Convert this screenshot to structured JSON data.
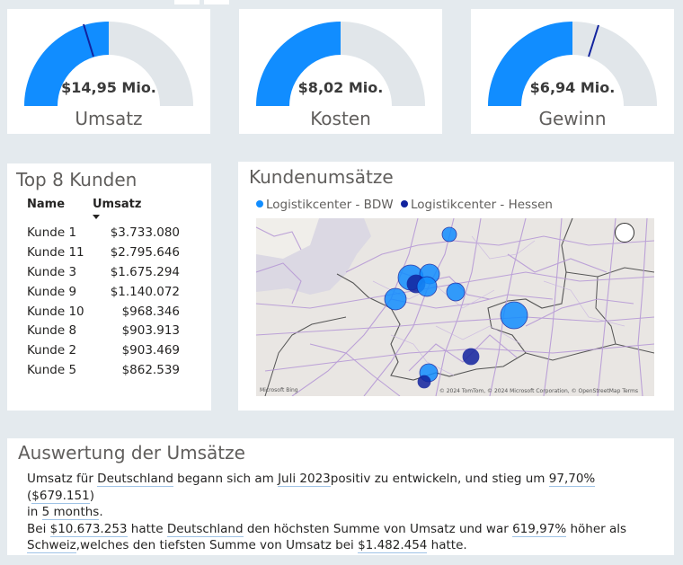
{
  "kpis": [
    {
      "value": "$14,95 Mio.",
      "label": "Umsatz",
      "fill": 0.5,
      "target": 0.41
    },
    {
      "value": "$8,02 Mio.",
      "label": "Kosten",
      "fill": 0.5,
      "target": null
    },
    {
      "value": "$6,94 Mio.",
      "label": "Gewinn",
      "fill": 0.5,
      "target": 0.61
    }
  ],
  "colors": {
    "accent": "#118dff",
    "track": "#e1e6ea",
    "target": "#12239e",
    "series_bdw": "#118dff",
    "series_hessen": "#12239e"
  },
  "customers": {
    "title": "Top 8 Kunden",
    "col_name": "Name",
    "col_value": "Umsatz",
    "rows": [
      {
        "name": "Kunde 1",
        "value": "$3.733.080"
      },
      {
        "name": "Kunde 11",
        "value": "$2.795.646"
      },
      {
        "name": "Kunde 3",
        "value": "$1.675.294"
      },
      {
        "name": "Kunde 9",
        "value": "$1.140.072"
      },
      {
        "name": "Kunde 10",
        "value": "$968.346"
      },
      {
        "name": "Kunde 8",
        "value": "$903.913"
      },
      {
        "name": "Kunde 2",
        "value": "$903.469"
      },
      {
        "name": "Kunde 5",
        "value": "$862.539"
      }
    ]
  },
  "map": {
    "title": "Kundenumsätze",
    "legend": [
      "Logistikcenter - BDW",
      "Logistikcenter - Hessen"
    ],
    "logo": "Microsoft Bing",
    "credit": "© 2024 TomTom, © 2024 Microsoft Corporation, © OpenStreetMap  Terms"
  },
  "narrative": {
    "title": "Auswertung der Umsätze",
    "p1": {
      "t1": "Umsatz für ",
      "h1": "Deutschland",
      "t2": " begann sich am ",
      "h2": "Juli 2023",
      "t3": "positiv zu entwickeln, und stieg um ",
      "h3": "97,70%",
      "t4": " (",
      "h4": "$679.151",
      "t5": ")",
      "t6": "in ",
      "h5": "5 months",
      "t7": "."
    },
    "p2": {
      "t1": "Bei ",
      "h1": "$10.673.253",
      "t2": " hatte ",
      "h2": "Deutschland",
      "t3": " den höchsten Summe von Umsatz und war ",
      "h3": "619,97%",
      "t4": " höher als ",
      "h4": "Schweiz",
      "t5": ",welches den tiefsten Summe von Umsatz bei ",
      "h5": "$1.482.454",
      "t6": " hatte."
    }
  }
}
